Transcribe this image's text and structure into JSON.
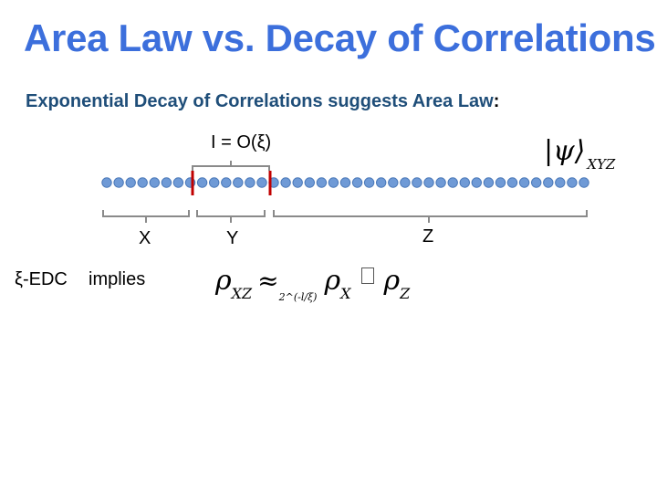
{
  "title": "Area Law vs. Decay of Correlations",
  "subtitle": "Exponential Decay of Correlations suggests Area Law",
  "subtitle_colon": ":",
  "labels": {
    "mutual_info": "I = O(ξ)",
    "x": "X",
    "y": "Y",
    "z": "Z",
    "edc": "ξ-EDC",
    "implies": "implies"
  },
  "ket": {
    "symbol": "|ψ⟩",
    "subscript": "XYZ"
  },
  "formula": {
    "rho": "ρ",
    "sub_xz": "XZ",
    "approx": "≈",
    "approx_sub": "2^(-l/ξ)",
    "sub_x": "X",
    "sub_z": "Z"
  },
  "colors": {
    "title": "#3c6fdc",
    "subtitle": "#1f4e79",
    "dot": "#6f9ad6",
    "cut": "#c00000"
  }
}
